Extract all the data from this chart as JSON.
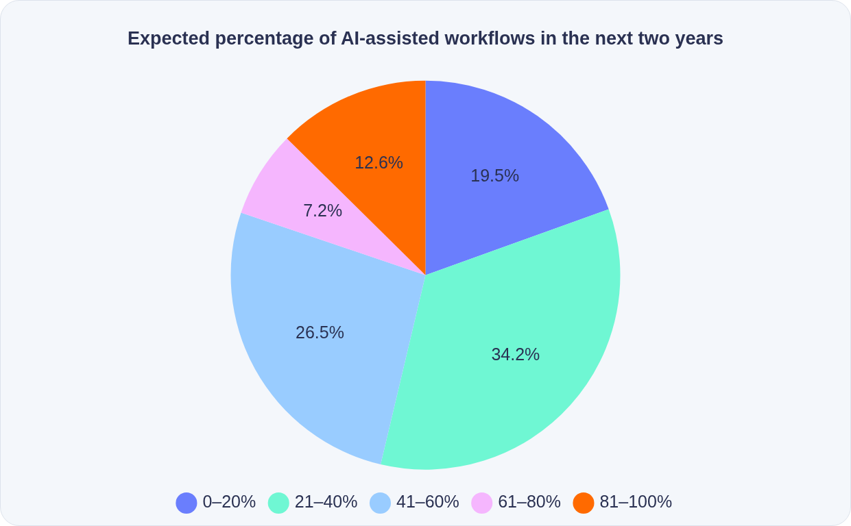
{
  "chart_data": {
    "type": "pie",
    "title": "Expected percentage of AI-assisted workflows in the next two years",
    "categories": [
      "0–20%",
      "21–40%",
      "41–60%",
      "61–80%",
      "81–100%"
    ],
    "values": [
      19.5,
      34.2,
      26.5,
      7.2,
      12.6
    ],
    "value_labels": [
      "19.5%",
      "34.2%",
      "26.5%",
      "7.2%",
      "12.6%"
    ],
    "colors": [
      "#6a7efd",
      "#6ff7d3",
      "#99ccff",
      "#f5b6fe",
      "#ff6a00"
    ],
    "legend": "bottom"
  }
}
